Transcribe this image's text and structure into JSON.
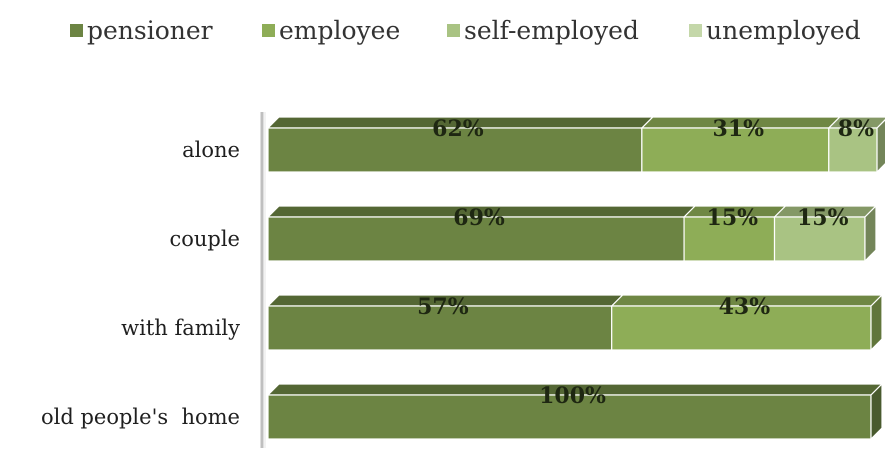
{
  "chart_data": {
    "type": "bar",
    "orientation": "horizontal",
    "stacked": true,
    "style": "3d",
    "categories": [
      "alone",
      "couple",
      "with family",
      "old people's  home"
    ],
    "series": [
      {
        "name": "pensioner",
        "values": [
          62,
          69,
          57,
          100
        ],
        "labels": [
          "62%",
          "69%",
          "57%",
          "100%"
        ]
      },
      {
        "name": "employee",
        "values": [
          31,
          15,
          43,
          0
        ],
        "labels": [
          "31%",
          "15%",
          "43%",
          ""
        ]
      },
      {
        "name": "self-employed",
        "values": [
          8,
          15,
          0,
          0
        ],
        "labels": [
          "8%",
          "15%",
          "",
          ""
        ]
      },
      {
        "name": "unemployed",
        "values": [
          0,
          0,
          0,
          0
        ],
        "labels": [
          "",
          "",
          "",
          ""
        ]
      }
    ],
    "xlim": [
      0,
      100
    ],
    "legend_position": "top",
    "grid": false,
    "colors": [
      "#6c8443",
      "#8ead57",
      "#a9c383",
      "#c4d7a9"
    ]
  }
}
